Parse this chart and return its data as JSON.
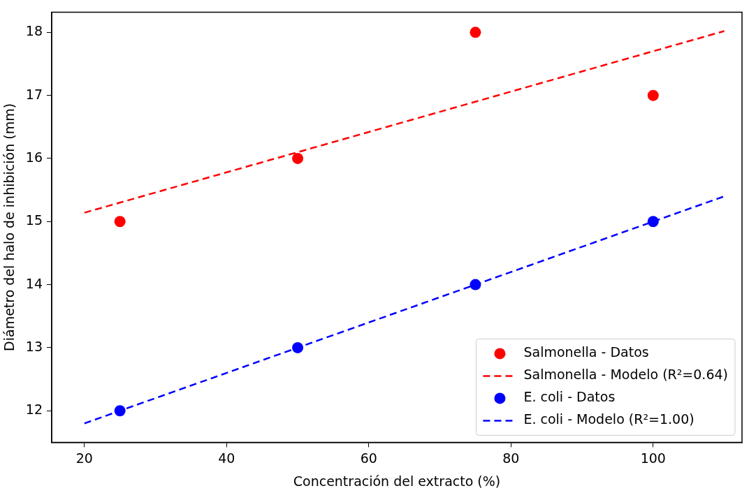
{
  "chart_data": {
    "type": "scatter",
    "xlabel": "Concentración del extracto (%)",
    "ylabel": "Diámetro del halo de inhibición (mm)",
    "xlim": [
      15.4,
      112.5
    ],
    "xticks": [
      20,
      40,
      60,
      80,
      100
    ],
    "ylim": [
      11.5,
      18.32
    ],
    "yticks": [
      12,
      13,
      14,
      15,
      16,
      17,
      18
    ],
    "grid": false,
    "legend": "bottom right",
    "marker": "circle",
    "series": [
      {
        "name": "Salmonella - Datos",
        "type": "scatter",
        "color": "#ff0000",
        "x": [
          25,
          50,
          75,
          100
        ],
        "values": [
          15,
          16,
          18,
          17
        ]
      },
      {
        "name": "Salmonella - Modelo (R²=0.64)",
        "type": "line",
        "line_style": "dashed",
        "marker": "none",
        "color": "#ff0000",
        "x": [
          20,
          110
        ],
        "values": [
          15.14,
          18.02
        ]
      },
      {
        "name": "E. coli - Datos",
        "type": "scatter",
        "color": "#0000ff",
        "x": [
          25,
          50,
          75,
          100
        ],
        "values": [
          12,
          13,
          14,
          15
        ]
      },
      {
        "name": "E. coli - Modelo (R²=1.00)",
        "type": "line",
        "line_style": "dashed",
        "marker": "none",
        "color": "#0000ff",
        "x": [
          20,
          110
        ],
        "values": [
          11.8,
          15.4
        ]
      }
    ]
  }
}
